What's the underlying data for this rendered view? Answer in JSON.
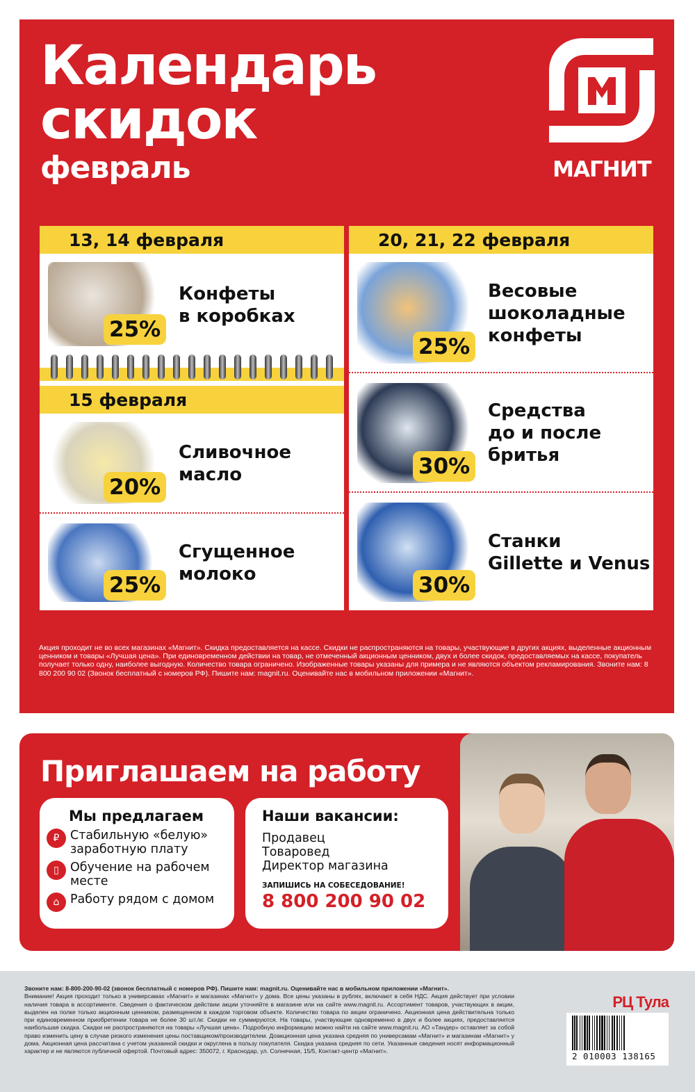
{
  "header": {
    "title_line1": "Календарь",
    "title_line2": "скидок",
    "month": "февраль",
    "brand": "МАГНИТ"
  },
  "left_card": {
    "section1": {
      "date": "13, 14 февраля",
      "items": [
        {
          "name_l1": "Конфеты",
          "name_l2": "в коробках",
          "discount": "25%"
        }
      ]
    },
    "section2": {
      "date": "15 февраля",
      "items": [
        {
          "name_l1": "Сливочное",
          "name_l2": "масло",
          "discount": "20%"
        },
        {
          "name_l1": "Сгущенное",
          "name_l2": "молоко",
          "discount": "25%"
        }
      ]
    }
  },
  "right_card": {
    "date": "20, 21, 22 февраля",
    "items": [
      {
        "name_l1": "Весовые",
        "name_l2": "шоколадные",
        "name_l3": "конфеты",
        "discount": "25%"
      },
      {
        "name_l1": "Средства",
        "name_l2": "до и после",
        "name_l3": "бритья",
        "discount": "30%"
      },
      {
        "name_l1": "Станки",
        "name_l2": "Gillette и Venus",
        "discount": "30%"
      }
    ]
  },
  "disclaimer": "Акция проходит не во всех магазинах «Магнит». Скидка предоставляется на кассе.  Скидки не распространяются на товары, участвующие в других акциях, выделенные акционным ценником и товары «Лучшая цена». При единовременном действии на товар, не отмеченный акционным ценником, двух и более скидок, предоставляемых на кассе, покупатель получает только одну, наиболее выгодную. Количество товара ограничено. Изображенные товары указаны для примера и не являются объектом рекламирования. Звоните нам: 8 800 200 90 02 (Звонок бесплатный с номеров РФ). Пишите нам: magnit.ru. Оценивайте нас в мобильном приложении «Магнит».",
  "jobs": {
    "title": "Приглашаем на работу",
    "offer": {
      "heading": "Мы предлагаем",
      "items": [
        {
          "icon": "ruble-hand-icon",
          "text": "Стабильную «белую» заработную плату"
        },
        {
          "icon": "book-icon",
          "text": "Обучение на рабочем месте"
        },
        {
          "icon": "house-icon",
          "text": "Работу рядом с домом"
        }
      ]
    },
    "vacancies": {
      "heading": "Наши вакансии:",
      "items": [
        "Продавец",
        "Товаровед",
        "Директор магазина"
      ],
      "cta": "ЗАПИШИСЬ НА СОБЕСЕДОВАНИЕ!",
      "phone": "8 800 200 90 02"
    }
  },
  "footer": {
    "bold_line": "Звоните нам: 8-800-200-90-02 (звонок бесплатный с номеров РФ). Пишите нам: magnit.ru. Оценивайте нас в мобильном приложении «Магнит».",
    "text": "Внимание! Акция проходит только в универсамах «Магнит» и магазинах «Магнит» у дома. Все цены указаны в рублях, включают в себя НДС. Акция действует при условии наличия товара в ассортименте. Сведения о фактическом действии акции уточняйте в магазине или на сайте www.magnit.ru. Ассортимент товаров, участвующих в акции, выделен на полке только акционным ценником, размещенном в каждом торговом объекте. Количество товара по акции ограничено. Акционная цена действительна только при единовременном приобретении товара не более 30 шт./кг. Скидки не суммируются. На товары, участвующие одновременно в двух и более акциях, предоставляется наибольшая скидка. Скидки не распространяются на товары «Лучшая цена». Подробную информацию можно найти на сайте www.magnit.ru. АО «Тандер» оставляет за собой право изменить цену в случае резкого изменения цены поставщиком/производителем. Доакционная цена указана средняя по универсамам «Магнит» и магазинам «Магнит» у дома. Акционная цена рассчитана с учетом указанной скидки и округлена в пользу покупателя. Скидка указана средняя по сети. Указанные сведения носят информационный характер и не являются публичной офертой. Почтовый адрес: 350072, г. Краснодар, ул. Солнечная, 15/5, Контакт-центр «Магнит».",
    "region": "РЦ Тула",
    "barcode": "2 010003 138165"
  },
  "colors": {
    "brand_red": "#d42027",
    "accent_yellow": "#f7d23c",
    "footer_gray": "#dadde0"
  }
}
